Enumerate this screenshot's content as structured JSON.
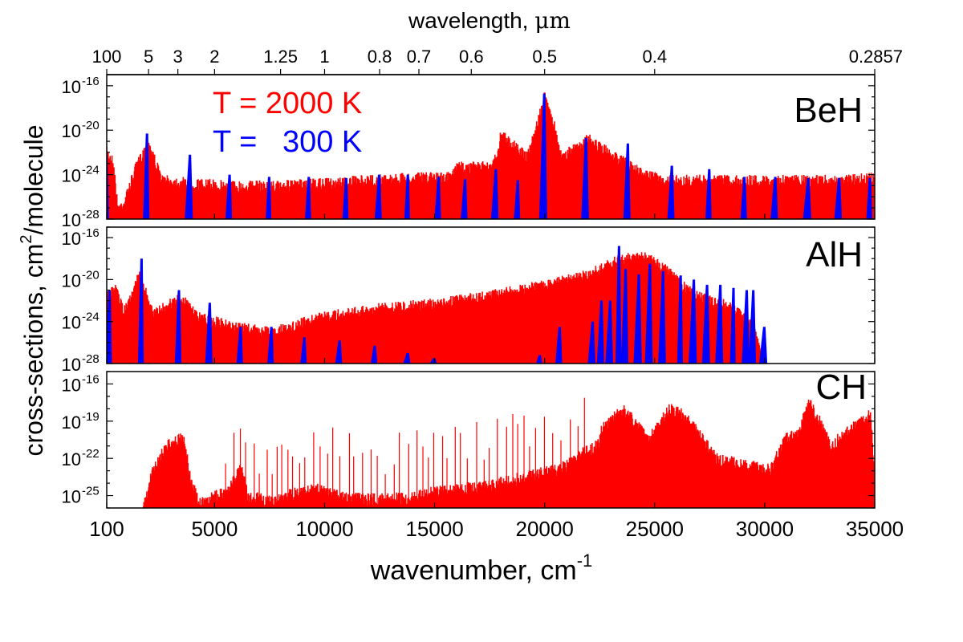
{
  "chart_data": {
    "type": "area",
    "top_axis": {
      "title_text": "wavelength, ",
      "title_unit": "μm",
      "ticks": [
        {
          "label": "100",
          "wavenumber": 100
        },
        {
          "label": "5",
          "wavenumber": 2000
        },
        {
          "label": "3",
          "wavenumber": 3333
        },
        {
          "label": "2",
          "wavenumber": 5000
        },
        {
          "label": "1.25",
          "wavenumber": 8000
        },
        {
          "label": "1",
          "wavenumber": 10000
        },
        {
          "label": "0.8",
          "wavenumber": 12500
        },
        {
          "label": "0.7",
          "wavenumber": 14286
        },
        {
          "label": "0.6",
          "wavenumber": 16667
        },
        {
          "label": "0.5",
          "wavenumber": 20000
        },
        {
          "label": "0.4",
          "wavenumber": 25000
        },
        {
          "label": "0.2857",
          "wavenumber": 35000
        }
      ]
    },
    "x_axis": {
      "title_text": "wavenumber, cm",
      "title_sup": "-1",
      "range": [
        100,
        35000
      ],
      "ticks": [
        {
          "label": "100",
          "value": 100
        },
        {
          "label": "5000",
          "value": 5000
        },
        {
          "label": "10000",
          "value": 10000
        },
        {
          "label": "15000",
          "value": 15000
        },
        {
          "label": "20000",
          "value": 20000
        },
        {
          "label": "25000",
          "value": 25000
        },
        {
          "label": "30000",
          "value": 30000
        },
        {
          "label": "35000",
          "value": 35000
        }
      ]
    },
    "y_axis": {
      "title_main": "cross-sections, cm",
      "title_sup": "2",
      "title_tail": "/molecule",
      "scale": "log"
    },
    "legend": {
      "placement": "top-left of BeH panel",
      "entries": [
        {
          "text": "T = 2000 K",
          "color": "#ff0000"
        },
        {
          "text": "T =   300 K",
          "color": "#0000ff"
        }
      ]
    },
    "panels": [
      {
        "label": "BeH",
        "ylim_log": [
          -28,
          -15
        ],
        "yticks": [
          {
            "exp": "-16",
            "v": -16
          },
          {
            "exp": "-20",
            "v": -20
          },
          {
            "exp": "-24",
            "v": -24
          },
          {
            "exp": "-28",
            "v": -28
          }
        ],
        "series": [
          {
            "name": "T = 2000 K",
            "color": "#ff0000",
            "envelope": [
              [
                100,
                -21.5
              ],
              [
                400,
                -22.3
              ],
              [
                600,
                -26.5
              ],
              [
                900,
                -26
              ],
              [
                1400,
                -23
              ],
              [
                2000,
                -20.5
              ],
              [
                2600,
                -24
              ],
              [
                4000,
                -24.3
              ],
              [
                6000,
                -24.5
              ],
              [
                8000,
                -24.5
              ],
              [
                10000,
                -24.3
              ],
              [
                12000,
                -24
              ],
              [
                14000,
                -23.8
              ],
              [
                15800,
                -23.7
              ],
              [
                16000,
                -22.8
              ],
              [
                17500,
                -22.8
              ],
              [
                17900,
                -21.5
              ],
              [
                18000,
                -19.8
              ],
              [
                18700,
                -21
              ],
              [
                19200,
                -22
              ],
              [
                19800,
                -18
              ],
              [
                20000,
                -16.5
              ],
              [
                20300,
                -18
              ],
              [
                20800,
                -22
              ],
              [
                21400,
                -21
              ],
              [
                22000,
                -20.3
              ],
              [
                22500,
                -21
              ],
              [
                23500,
                -22.2
              ],
              [
                24500,
                -23.5
              ],
              [
                25500,
                -24
              ],
              [
                27000,
                -24
              ],
              [
                29000,
                -24
              ],
              [
                31000,
                -24
              ],
              [
                33000,
                -24
              ],
              [
                35000,
                -23.8
              ]
            ]
          },
          {
            "name": "T = 300 K",
            "color": "#0000ff",
            "peaks": [
              [
                100,
                -22.3
              ],
              [
                1950,
                -20.3
              ],
              [
                3900,
                -22.2
              ],
              [
                5700,
                -24
              ],
              [
                7500,
                -24.2
              ],
              [
                9300,
                -24.2
              ],
              [
                11000,
                -24.3
              ],
              [
                12500,
                -24
              ],
              [
                13800,
                -24
              ],
              [
                15200,
                -24.2
              ],
              [
                16400,
                -24.4
              ],
              [
                17800,
                -23.5
              ],
              [
                18800,
                -24.5
              ],
              [
                20000,
                -16.7
              ],
              [
                21900,
                -20.7
              ],
              [
                23800,
                -21.2
              ],
              [
                25800,
                -23.2
              ],
              [
                27500,
                -23.5
              ],
              [
                29100,
                -24.2
              ],
              [
                30500,
                -24.2
              ],
              [
                32000,
                -24.3
              ],
              [
                33400,
                -24.3
              ],
              [
                34800,
                -24.3
              ]
            ]
          }
        ]
      },
      {
        "label": "AlH",
        "ylim_log": [
          -28,
          -15
        ],
        "yticks": [
          {
            "exp": "-16",
            "v": -16
          },
          {
            "exp": "-20",
            "v": -20
          },
          {
            "exp": "-24",
            "v": -24
          },
          {
            "exp": "-28",
            "v": -28
          }
        ],
        "series": [
          {
            "name": "T = 2000 K",
            "color": "#ff0000",
            "envelope": [
              [
                100,
                -21
              ],
              [
                500,
                -20.5
              ],
              [
                900,
                -22.5
              ],
              [
                1600,
                -19
              ],
              [
                2200,
                -22.7
              ],
              [
                3500,
                -21.2
              ],
              [
                4200,
                -23
              ],
              [
                6000,
                -24
              ],
              [
                7500,
                -24.5
              ],
              [
                10000,
                -23
              ],
              [
                12500,
                -22.2
              ],
              [
                15000,
                -21.8
              ],
              [
                17500,
                -21
              ],
              [
                20000,
                -20
              ],
              [
                22000,
                -19
              ],
              [
                23400,
                -17.5
              ],
              [
                24500,
                -17.2
              ],
              [
                25500,
                -18.5
              ],
              [
                26500,
                -20.5
              ],
              [
                27500,
                -21.5
              ],
              [
                28500,
                -22
              ],
              [
                29500,
                -24
              ],
              [
                30000,
                -28
              ]
            ]
          },
          {
            "name": "T = 300 K",
            "color": "#0000ff",
            "peaks": [
              [
                250,
                -21
              ],
              [
                1700,
                -18
              ],
              [
                3400,
                -21
              ],
              [
                4800,
                -22.2
              ],
              [
                6200,
                -24.5
              ],
              [
                7600,
                -24.5
              ],
              [
                9100,
                -25.5
              ],
              [
                10700,
                -25.8
              ],
              [
                12300,
                -26.3
              ],
              [
                13800,
                -27
              ],
              [
                15000,
                -27.5
              ],
              [
                19800,
                -27.2
              ],
              [
                20700,
                -24.5
              ],
              [
                22200,
                -24
              ],
              [
                22600,
                -22
              ],
              [
                23000,
                -22
              ],
              [
                23400,
                -16.8
              ],
              [
                23700,
                -19
              ],
              [
                24300,
                -19.5
              ],
              [
                24800,
                -18.5
              ],
              [
                25400,
                -19.2
              ],
              [
                26200,
                -19.6
              ],
              [
                26800,
                -20
              ],
              [
                27400,
                -20.5
              ],
              [
                28000,
                -20.5
              ],
              [
                28600,
                -20.8
              ],
              [
                29200,
                -21
              ],
              [
                29500,
                -21
              ],
              [
                30000,
                -24.5
              ]
            ]
          }
        ]
      },
      {
        "label": "CH",
        "ylim_log": [
          -26,
          -15
        ],
        "yticks": [
          {
            "exp": "-16",
            "v": -16
          },
          {
            "exp": "-19",
            "v": -19
          },
          {
            "exp": "-22",
            "v": -22
          },
          {
            "exp": "-25",
            "v": -25
          }
        ],
        "series": [
          {
            "name": "T = 2000 K",
            "color": "#ff0000",
            "envelope": [
              [
                1700,
                -26
              ],
              [
                2200,
                -22.5
              ],
              [
                2800,
                -20.5
              ],
              [
                3600,
                -19.8
              ],
              [
                3900,
                -23
              ],
              [
                4300,
                -25.2
              ],
              [
                5000,
                -24.6
              ],
              [
                5600,
                -24.2
              ],
              [
                6200,
                -22.2
              ],
              [
                6500,
                -24.5
              ],
              [
                7500,
                -25
              ],
              [
                8700,
                -24.3
              ],
              [
                9700,
                -24
              ],
              [
                11000,
                -24.7
              ],
              [
                12500,
                -24.8
              ],
              [
                14000,
                -24.7
              ],
              [
                15000,
                -24.2
              ],
              [
                16000,
                -24
              ],
              [
                17000,
                -23.8
              ],
              [
                18000,
                -23.5
              ],
              [
                19500,
                -22.8
              ],
              [
                20500,
                -22.5
              ],
              [
                21000,
                -22
              ],
              [
                21800,
                -21
              ],
              [
                22400,
                -20.5
              ],
              [
                22600,
                -19
              ],
              [
                23000,
                -18.5
              ],
              [
                23500,
                -17.5
              ],
              [
                24100,
                -18.5
              ],
              [
                24700,
                -20
              ],
              [
                25300,
                -18.5
              ],
              [
                25700,
                -17.5
              ],
              [
                26300,
                -18
              ],
              [
                27000,
                -19.5
              ],
              [
                27800,
                -21.5
              ],
              [
                29000,
                -22
              ],
              [
                30300,
                -22.3
              ],
              [
                30900,
                -20
              ],
              [
                31500,
                -19.5
              ],
              [
                32000,
                -17
              ],
              [
                32500,
                -18.5
              ],
              [
                33000,
                -20.5
              ],
              [
                34000,
                -19
              ],
              [
                34800,
                -18
              ],
              [
                35000,
                -22.5
              ]
            ]
          }
        ]
      }
    ]
  }
}
